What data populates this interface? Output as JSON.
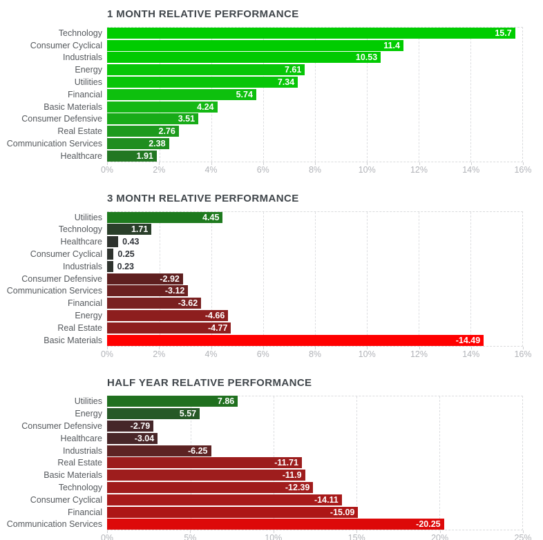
{
  "chart_data": [
    {
      "type": "bar",
      "orientation": "horizontal",
      "title": "1 MONTH RELATIVE PERFORMANCE",
      "xlabel": "",
      "ylabel": "",
      "xlim": [
        0,
        16
      ],
      "xtick_labels": [
        "0%",
        "2%",
        "4%",
        "6%",
        "8%",
        "10%",
        "12%",
        "14%",
        "16%"
      ],
      "grid": "dashed-vertical",
      "legend": "none",
      "bar_length_basis": "absolute-value",
      "bars": [
        {
          "category": "Technology",
          "value": 15.7,
          "label": "15.7",
          "color": "#00cd00"
        },
        {
          "category": "Consumer Cyclical",
          "value": 11.4,
          "label": "11.4",
          "color": "#00cc00"
        },
        {
          "category": "Industrials",
          "value": 10.53,
          "label": "10.53",
          "color": "#01ca01"
        },
        {
          "category": "Energy",
          "value": 7.61,
          "label": "7.61",
          "color": "#07c607"
        },
        {
          "category": "Utilities",
          "value": 7.34,
          "label": "7.34",
          "color": "#08c508"
        },
        {
          "category": "Financial",
          "value": 5.74,
          "label": "5.74",
          "color": "#0ec00e"
        },
        {
          "category": "Basic Materials",
          "value": 4.24,
          "label": "4.24",
          "color": "#14b814"
        },
        {
          "category": "Consumer Defensive",
          "value": 3.51,
          "label": "3.51",
          "color": "#18ab18"
        },
        {
          "category": "Real Estate",
          "value": 2.76,
          "label": "2.76",
          "color": "#1d9a1d"
        },
        {
          "category": "Communication Services",
          "value": 2.38,
          "label": "2.38",
          "color": "#1f8d1f"
        },
        {
          "category": "Healthcare",
          "value": 1.91,
          "label": "1.91",
          "color": "#227722"
        }
      ]
    },
    {
      "type": "bar",
      "orientation": "horizontal",
      "title": "3 MONTH RELATIVE PERFORMANCE",
      "xlabel": "",
      "ylabel": "",
      "xlim": [
        0,
        16
      ],
      "xtick_labels": [
        "0%",
        "2%",
        "4%",
        "6%",
        "8%",
        "10%",
        "12%",
        "14%",
        "16%"
      ],
      "grid": "dashed-vertical",
      "legend": "none",
      "bar_length_basis": "absolute-value",
      "bars": [
        {
          "category": "Utilities",
          "value": 4.45,
          "label": "4.45",
          "color": "#1e7a1e"
        },
        {
          "category": "Technology",
          "value": 1.71,
          "label": "1.71",
          "color": "#2a3f2a"
        },
        {
          "category": "Healthcare",
          "value": 0.43,
          "label": "0.43",
          "color": "#2e332e"
        },
        {
          "category": "Consumer Cyclical",
          "value": 0.25,
          "label": "0.25",
          "color": "#2e332e"
        },
        {
          "category": "Industrials",
          "value": 0.23,
          "label": "0.23",
          "color": "#2e332e"
        },
        {
          "category": "Consumer Defensive",
          "value": -2.92,
          "label": "-2.92",
          "color": "#5e1f1f"
        },
        {
          "category": "Communication Services",
          "value": -3.12,
          "label": "-3.12",
          "color": "#6b2020"
        },
        {
          "category": "Financial",
          "value": -3.62,
          "label": "-3.62",
          "color": "#7a2121"
        },
        {
          "category": "Energy",
          "value": -4.66,
          "label": "-4.66",
          "color": "#8d1e1e"
        },
        {
          "category": "Real Estate",
          "value": -4.77,
          "label": "-4.77",
          "color": "#8e1e1e"
        },
        {
          "category": "Basic Materials",
          "value": -14.49,
          "label": "-14.49",
          "color": "#ff0000"
        }
      ]
    },
    {
      "type": "bar",
      "orientation": "horizontal",
      "title": "HALF YEAR RELATIVE PERFORMANCE",
      "xlabel": "",
      "ylabel": "",
      "xlim": [
        0,
        25
      ],
      "xtick_labels": [
        "0%",
        "5%",
        "10%",
        "15%",
        "20%",
        "25%"
      ],
      "grid": "dashed-vertical",
      "legend": "none",
      "bar_length_basis": "absolute-value",
      "bars": [
        {
          "category": "Utilities",
          "value": 7.86,
          "label": "7.86",
          "color": "#20701f"
        },
        {
          "category": "Energy",
          "value": 5.57,
          "label": "5.57",
          "color": "#265927"
        },
        {
          "category": "Consumer Defensive",
          "value": -2.79,
          "label": "-2.79",
          "color": "#452629"
        },
        {
          "category": "Healthcare",
          "value": -3.04,
          "label": "-3.04",
          "color": "#482628"
        },
        {
          "category": "Industrials",
          "value": -6.25,
          "label": "-6.25",
          "color": "#5d2323"
        },
        {
          "category": "Real Estate",
          "value": -11.71,
          "label": "-11.71",
          "color": "#9c1d1d"
        },
        {
          "category": "Basic Materials",
          "value": -11.9,
          "label": "-11.9",
          "color": "#9e1d1d"
        },
        {
          "category": "Technology",
          "value": -12.39,
          "label": "-12.39",
          "color": "#a01c1c"
        },
        {
          "category": "Consumer Cyclical",
          "value": -14.11,
          "label": "-14.11",
          "color": "#a81a1a"
        },
        {
          "category": "Financial",
          "value": -15.09,
          "label": "-15.09",
          "color": "#ad1616"
        },
        {
          "category": "Communication Services",
          "value": -20.25,
          "label": "-20.25",
          "color": "#dd0909"
        }
      ]
    }
  ],
  "style": {
    "background": "#ffffff",
    "positive_bright": "#00cc00",
    "negative_bright": "#ff0000",
    "title_color": "#40464b",
    "category_label_color": "#54585c",
    "axis_label_color": "#b1b3b8",
    "grid_color": "#dcdde0",
    "inside_value_label_color": "#ffffff",
    "outside_value_label_color": "#2f3338"
  }
}
